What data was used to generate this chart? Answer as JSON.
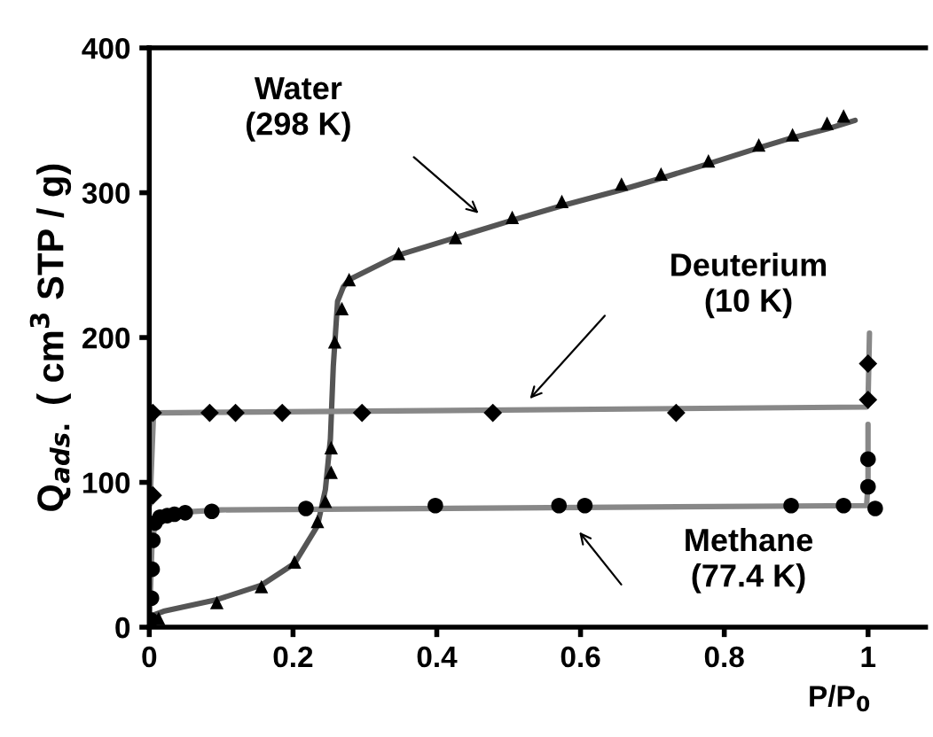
{
  "chart_data": {
    "type": "line",
    "xlabel": "P/P$_{0}$",
    "ylabel": "Q$_{ads.}$ ( cm$^{3}$ STP / g)",
    "xlim": [
      0,
      1.08
    ],
    "ylim": [
      0,
      400
    ],
    "xticks": [
      0,
      0.2,
      0.4,
      0.6,
      0.8,
      1
    ],
    "yticks": [
      0,
      100,
      200,
      300,
      400
    ],
    "grid": false,
    "legend": false,
    "series": [
      {
        "color": "#555555",
        "marker": "none",
        "x": [
          0.004,
          0.02,
          0.094,
          0.156,
          0.202,
          0.234,
          0.245,
          0.252,
          0.256,
          0.262,
          0.27,
          0.278,
          0.347,
          0.426,
          0.505,
          0.574,
          0.657,
          0.712,
          0.778,
          0.848,
          0.895,
          0.943,
          0.982
        ],
        "values": [
          8,
          11,
          19,
          29,
          44,
          70,
          95,
          130,
          180,
          225,
          235,
          240,
          257,
          269,
          281,
          291,
          302,
          310,
          320,
          331,
          338,
          344,
          350
        ]
      },
      {
        "type": "scatter",
        "color": "#000000",
        "marker": "triangle",
        "x": [
          0.013,
          0.094,
          0.156,
          0.202,
          0.234,
          0.245,
          0.253,
          0.253,
          0.258,
          0.268,
          0.278,
          0.347,
          0.426,
          0.505,
          0.574,
          0.657,
          0.712,
          0.778,
          0.848,
          0.895,
          0.943,
          0.966
        ],
        "values": [
          6,
          17,
          28,
          45,
          73,
          87,
          107,
          124,
          197,
          220,
          240,
          258,
          269,
          283,
          294,
          306,
          313,
          322,
          333,
          340,
          348,
          353
        ]
      },
      {
        "color": "#888888",
        "marker": "none",
        "x": [
          0.001,
          0.006,
          0.998,
          1.0,
          1.002
        ],
        "values": [
          85,
          148,
          152,
          155,
          203
        ]
      },
      {
        "type": "scatter",
        "color": "#000000",
        "marker": "diamond",
        "x": [
          0.005,
          0.005,
          0.084,
          0.12,
          0.185,
          0.296,
          0.478,
          0.733,
          1.0,
          1.0
        ],
        "values": [
          91,
          148,
          148,
          148,
          148,
          148,
          148,
          148,
          157,
          182
        ]
      },
      {
        "color": "#888888",
        "marker": "none",
        "x": [
          0.0,
          0.002,
          0.004,
          0.01,
          0.03,
          0.1,
          0.998,
          1.0,
          1.0
        ],
        "values": [
          0,
          30,
          60,
          75,
          79,
          81,
          84,
          100,
          140
        ]
      },
      {
        "type": "scatter",
        "color": "#000000",
        "marker": "circle",
        "x": [
          0.002,
          0.003,
          0.004,
          0.005,
          0.008,
          0.015,
          0.025,
          0.035,
          0.05,
          0.087,
          0.218,
          0.398,
          0.57,
          0.606,
          0.893,
          0.966,
          1.0,
          1.0,
          1.01
        ],
        "values": [
          5,
          20,
          40,
          60,
          72,
          76,
          77,
          78,
          79,
          80,
          82,
          84,
          84,
          84,
          84,
          84,
          97,
          116,
          82
        ]
      }
    ],
    "annotations": [
      "Water\n(298 K)",
      "Deuterium\n(10 K)",
      "Methane\n(77.4 K)"
    ]
  }
}
